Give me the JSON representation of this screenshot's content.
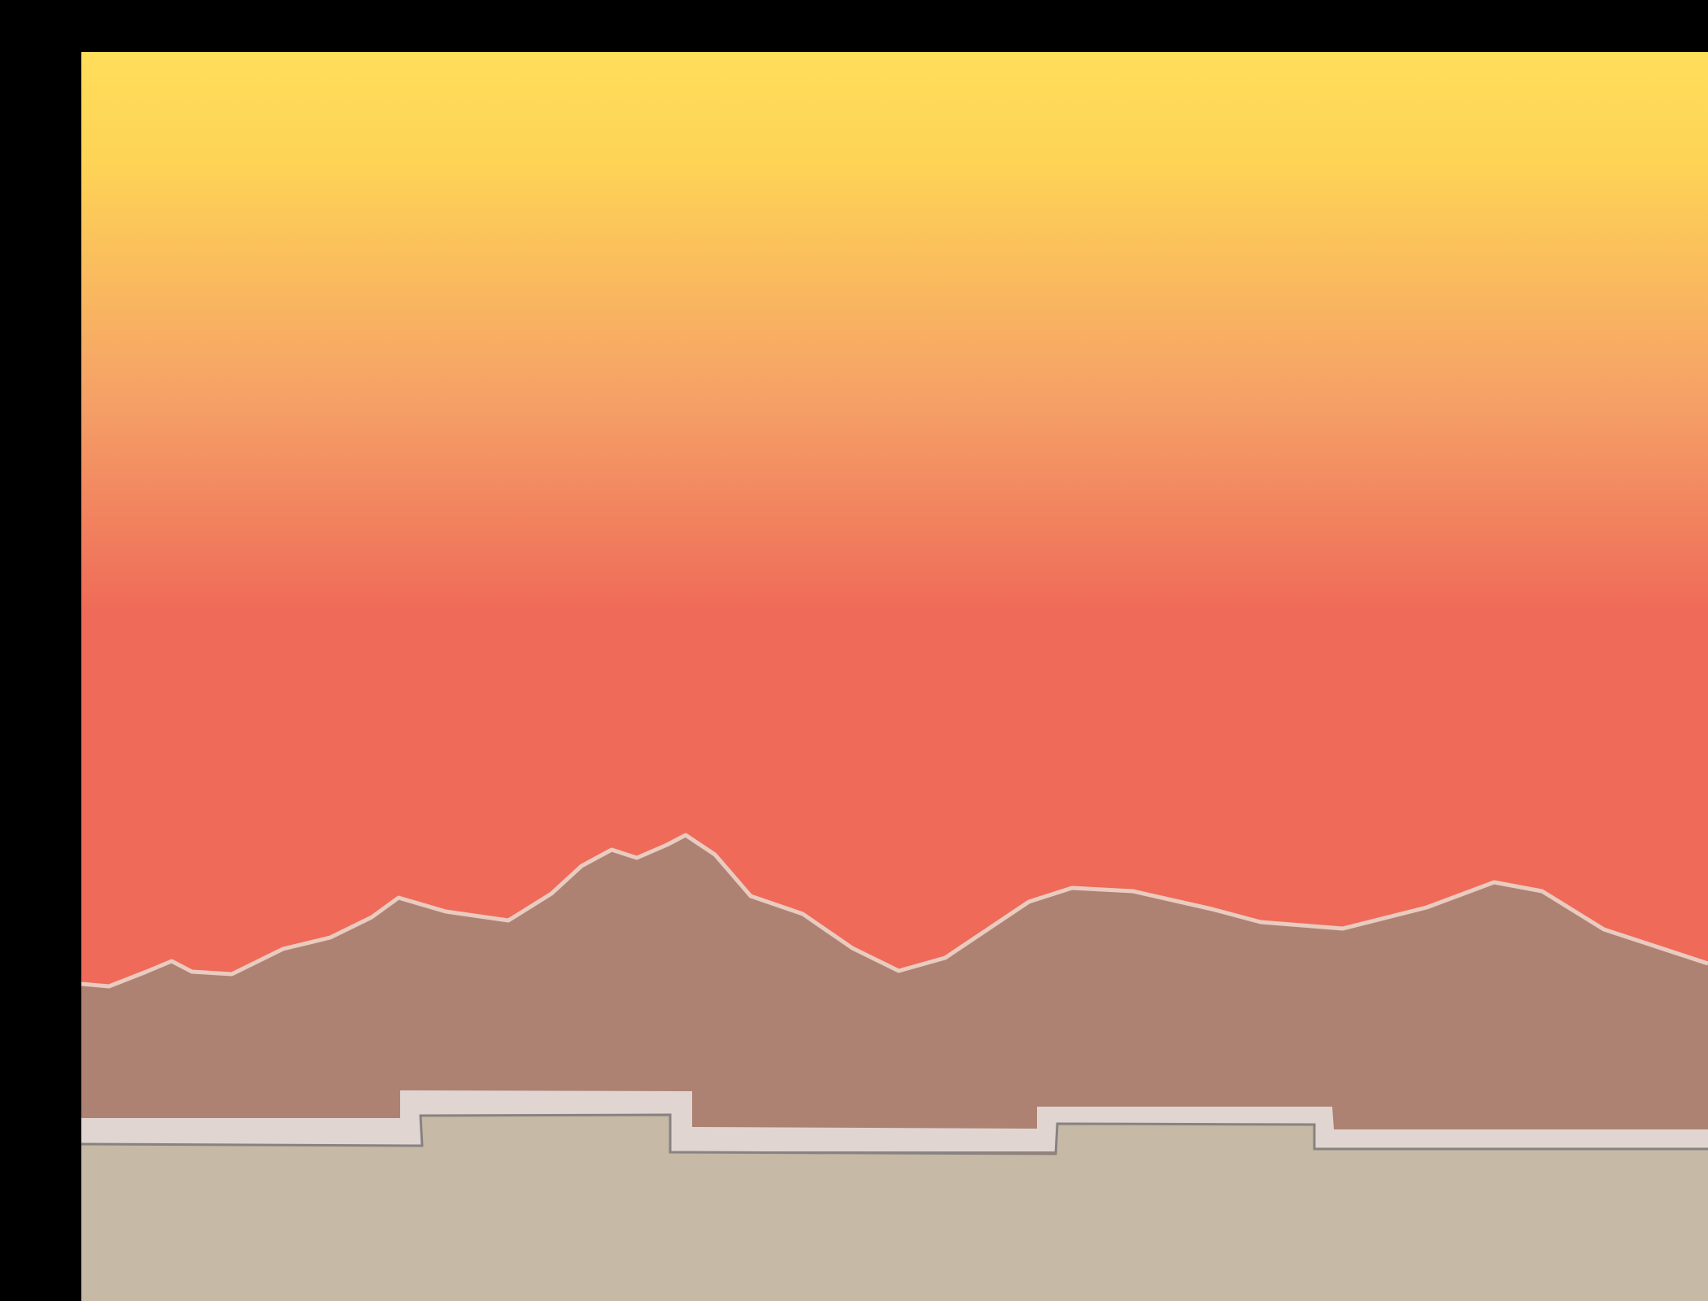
{
  "scene": {
    "colors": {
      "window_background": "#000000",
      "sky_top": "#FFDE5A",
      "sky_upper": "#FED356",
      "sky_middle": "#F5A067",
      "sky_lower": "#EF6A58",
      "mountain_fill": "#AD8272",
      "mountain_outline": "#EACBC0",
      "platform_fill": "#E1D5D1",
      "platform_outline": "#878382",
      "ground_fill": "#C6B9A5"
    },
    "icons": {
      "background": "sunset-sky",
      "terrain": "mountain-range-silhouette",
      "platform": "stepped-walkway-ledge",
      "ground": "sand-ground"
    }
  }
}
